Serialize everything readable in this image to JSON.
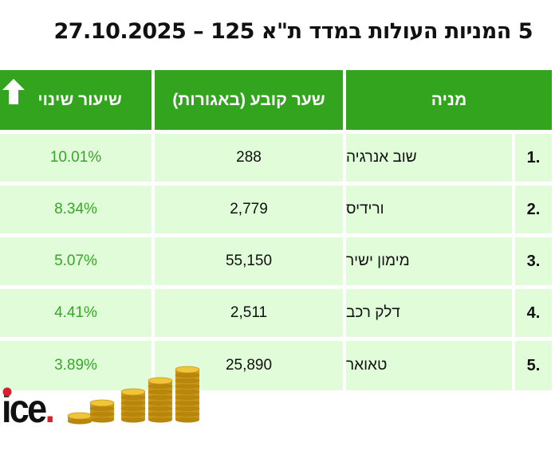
{
  "title": "5 המניות העולות במדד ת\"א 125 – 27.10.2025",
  "headers": {
    "change": "שיעור שינוי",
    "price": "שער קובע (באגורות)",
    "name": "מניה"
  },
  "rows": [
    {
      "num": "1.",
      "name": "שוב אנרגיה",
      "price": "288",
      "change": "10.01%"
    },
    {
      "num": "2.",
      "name": "ורידיס",
      "price": "2,779",
      "change": "8.34%"
    },
    {
      "num": "3.",
      "name": "מימון ישיר",
      "price": "55,150",
      "change": "5.07%"
    },
    {
      "num": "4.",
      "name": "דלק רכב",
      "price": "2,511",
      "change": "4.41%"
    },
    {
      "num": "5.",
      "name": "טאואר",
      "price": "25,890",
      "change": "3.89%"
    }
  ],
  "logo": "ice.",
  "colors": {
    "header": "#33a41e",
    "row": "#e0fcd9",
    "positive": "#38a628",
    "logo_dot": "#d6202a"
  }
}
